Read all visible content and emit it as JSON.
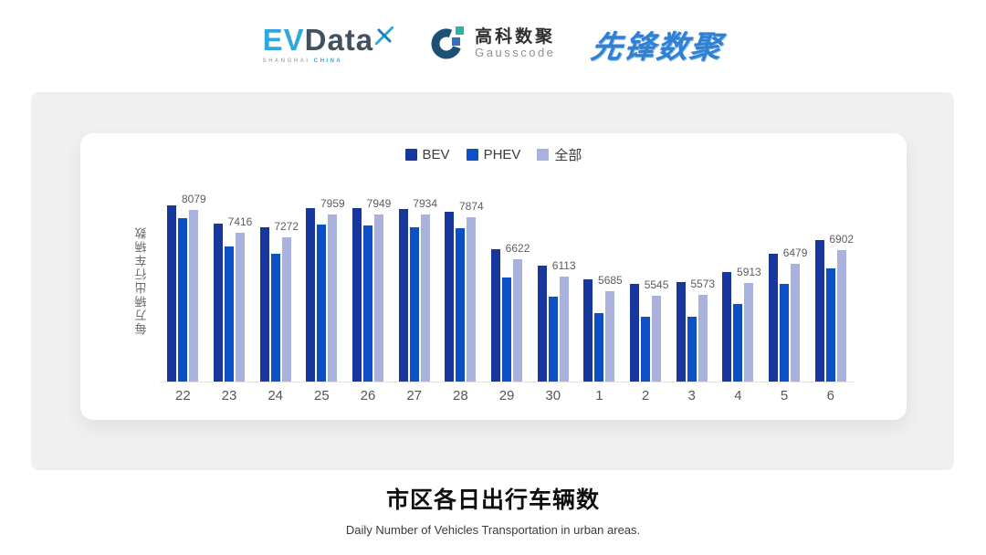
{
  "header": {
    "evdata": {
      "ev": "EV",
      "data": "Data",
      "tagline_left": "SHANGHAI",
      "tagline_right": "CHINA"
    },
    "gausscode": {
      "cn": "高科数聚",
      "en": "Gausscode"
    },
    "pioneer": {
      "text": "先锋数聚"
    }
  },
  "chart_data": {
    "type": "bar",
    "title": "市区各日出行车辆数",
    "subtitle": "Daily Number of Vehicles Transportation in urban areas.",
    "ylabel": "每万辆出行车辆数",
    "xlabel": "",
    "categories": [
      "22",
      "23",
      "24",
      "25",
      "26",
      "27",
      "28",
      "29",
      "30",
      "1",
      "2",
      "3",
      "4",
      "5",
      "6"
    ],
    "series": [
      {
        "name": "BEV",
        "color": "#17379e",
        "values": [
          8220,
          7670,
          7560,
          8140,
          8130,
          8110,
          8040,
          6910,
          6430,
          6040,
          5900,
          5950,
          6250,
          6790,
          7200
        ]
      },
      {
        "name": "PHEV",
        "color": "#0c4fc6",
        "values": [
          7850,
          6990,
          6780,
          7640,
          7610,
          7580,
          7540,
          6070,
          5500,
          5030,
          4930,
          4920,
          5310,
          5900,
          6340
        ]
      },
      {
        "name": "全部",
        "color": "#a9b2dc",
        "values": [
          8079,
          7416,
          7272,
          7959,
          7949,
          7934,
          7874,
          6622,
          6113,
          5685,
          5545,
          5573,
          5913,
          6479,
          6902
        ]
      }
    ],
    "label_series": "全部",
    "ylim": [
      3000,
      9000
    ],
    "grid": false,
    "legend_position": "top"
  },
  "colors": {
    "panel_bg": "#f0f0f0",
    "axis_line": "#e3e3e3",
    "pioneer_blue": "#2f80d4",
    "evdata_blue": "#2fa9dd",
    "evdata_dark": "#42515f",
    "gauss_navy": "#1d5076",
    "gauss_teal": "#2ab4a4",
    "gauss_blue": "#2e70c8"
  }
}
